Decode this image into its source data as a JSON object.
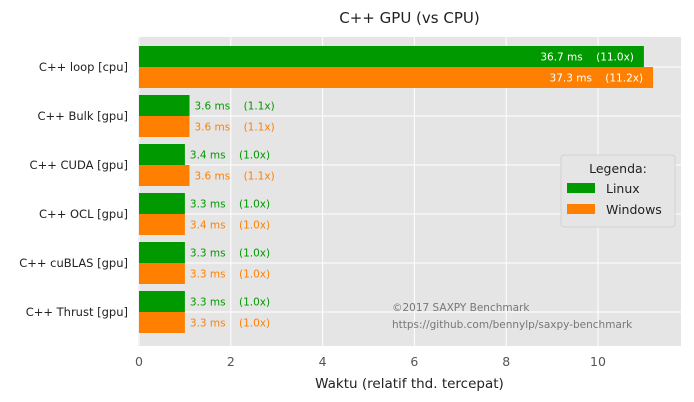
{
  "chart_data": {
    "type": "bar",
    "orientation": "horizontal",
    "title": "C++ GPU (vs CPU)",
    "xlabel": "Waktu (relatif thd. tercepat)",
    "ylabel": "",
    "xlim": [
      0,
      11.8
    ],
    "xticks": [
      "0",
      "2",
      "4",
      "6",
      "8",
      "10"
    ],
    "grid": true,
    "categories": [
      "C++ loop [cpu]",
      "C++ Bulk [gpu]",
      "C++ CUDA [gpu]",
      "C++ OCL [gpu]",
      "C++ cuBLAS [gpu]",
      "C++ Thrust [gpu]"
    ],
    "legend": {
      "title": "Legenda:",
      "placement": "center-right"
    },
    "series": [
      {
        "name": "Linux",
        "color": "#009900",
        "values": [
          11.0,
          1.1,
          1.0,
          1.0,
          1.0,
          1.0
        ],
        "labels": [
          "36.7 ms    (11.0x)",
          "3.6 ms    (1.1x)",
          "3.4 ms    (1.0x)",
          "3.3 ms    (1.0x)",
          "3.3 ms    (1.0x)",
          "3.3 ms    (1.0x)"
        ]
      },
      {
        "name": "Windows",
        "color": "#ff8000",
        "values": [
          11.2,
          1.1,
          1.1,
          1.0,
          1.0,
          1.0
        ],
        "labels": [
          "37.3 ms    (11.2x)",
          "3.6 ms    (1.1x)",
          "3.6 ms    (1.1x)",
          "3.4 ms    (1.0x)",
          "3.3 ms    (1.0x)",
          "3.3 ms    (1.0x)"
        ]
      }
    ],
    "annotations": [
      "©2017 SAXPY Benchmark",
      "https://github.com/bennylp/saxpy-benchmark"
    ]
  },
  "colors": {
    "plot_bg": "#e5e5e5",
    "grid": "#ffffff",
    "inside_label": "#ffffff"
  }
}
